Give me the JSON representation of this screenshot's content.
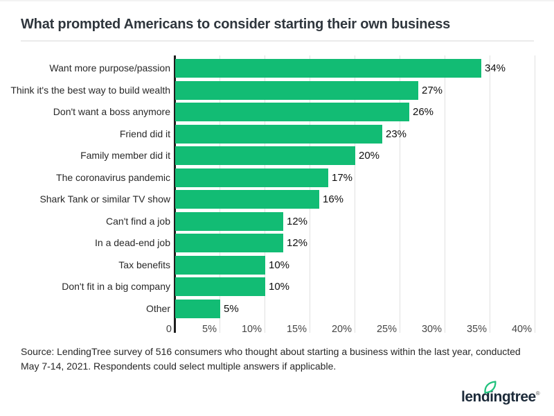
{
  "title": "What prompted Americans to consider starting their own business",
  "chart_data": {
    "type": "bar",
    "orientation": "horizontal",
    "title": "What prompted Americans to consider starting their own business",
    "categories": [
      "Want more purpose/passion",
      "Think it's the best way to build wealth",
      "Don't want a boss anymore",
      "Friend did it",
      "Family member did it",
      "The coronavirus pandemic",
      "Shark Tank or similar TV show",
      "Can't find a job",
      "In a dead-end job",
      "Tax benefits",
      "Don't fit in a big company",
      "Other"
    ],
    "values": [
      34,
      27,
      26,
      23,
      20,
      17,
      16,
      12,
      12,
      10,
      10,
      5
    ],
    "value_labels": [
      "34%",
      "27%",
      "26%",
      "23%",
      "20%",
      "17%",
      "16%",
      "12%",
      "12%",
      "10%",
      "10%",
      "5%"
    ],
    "x_tick_values": [
      0,
      5,
      10,
      15,
      20,
      25,
      30,
      35,
      40
    ],
    "x_tick_labels": [
      "0",
      "5%",
      "10%",
      "15%",
      "20%",
      "25%",
      "30%",
      "35%",
      "40%"
    ],
    "xlim": [
      0,
      40
    ],
    "xlabel": "",
    "ylabel": "",
    "grid": true,
    "legend": false,
    "bar_color": "#12BC74"
  },
  "source_note": "Source: LendingTree survey of 516 consumers who thought about starting a business within the last year, conducted May 7-14, 2021. Respondents could select multiple answers if applicable.",
  "logo": {
    "brand": "lendingtree",
    "registered": "®"
  },
  "colors": {
    "bar": "#12BC74",
    "axis": "#1d1d1d",
    "gridline": "#e0e0e0",
    "title_text": "#2f363d",
    "leaf": "#1FC17C",
    "logo_text": "#1c2a39"
  }
}
